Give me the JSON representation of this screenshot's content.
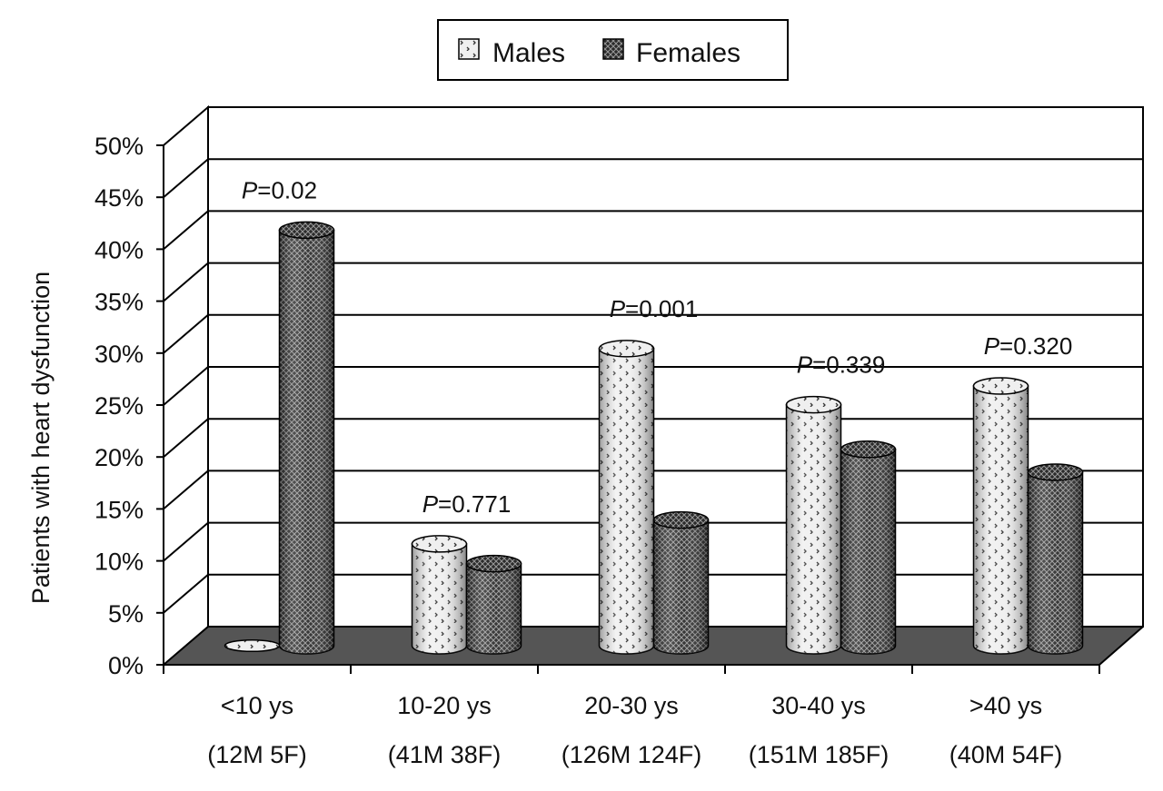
{
  "chart_data": {
    "type": "bar",
    "title": "",
    "xlabel": "",
    "ylabel": "Patients with heart dysfunction",
    "ylim": [
      0,
      50
    ],
    "yticks": [
      "0%",
      "5%",
      "10%",
      "15%",
      "20%",
      "25%",
      "30%",
      "35%",
      "40%",
      "45%",
      "50%"
    ],
    "grid": true,
    "legend_position": "top-center",
    "categories": [
      {
        "line1": "<10 ys",
        "line2": "(12M 5F)"
      },
      {
        "line1": "10-20 ys",
        "line2": "(41M 38F)"
      },
      {
        "line1": "20-30 ys",
        "line2": "(126M 124F)"
      },
      {
        "line1": "30-40 ys",
        "line2": "(151M 185F)"
      },
      {
        "line1": ">40 ys",
        "line2": "(40M 54F)"
      }
    ],
    "series": [
      {
        "name": "Males",
        "values": [
          0,
          9.8,
          28.6,
          23.2,
          25.0
        ]
      },
      {
        "name": "Females",
        "values": [
          40.0,
          7.9,
          12.1,
          18.9,
          16.7
        ]
      }
    ],
    "annotations": [
      {
        "prefix": "P",
        "text": "=0.02"
      },
      {
        "prefix": "P",
        "text": "=0.771"
      },
      {
        "prefix": "P",
        "text": "=0.001"
      },
      {
        "prefix": "P",
        "text": "=0.339"
      },
      {
        "prefix": "P",
        "text": "=0.320"
      }
    ]
  }
}
